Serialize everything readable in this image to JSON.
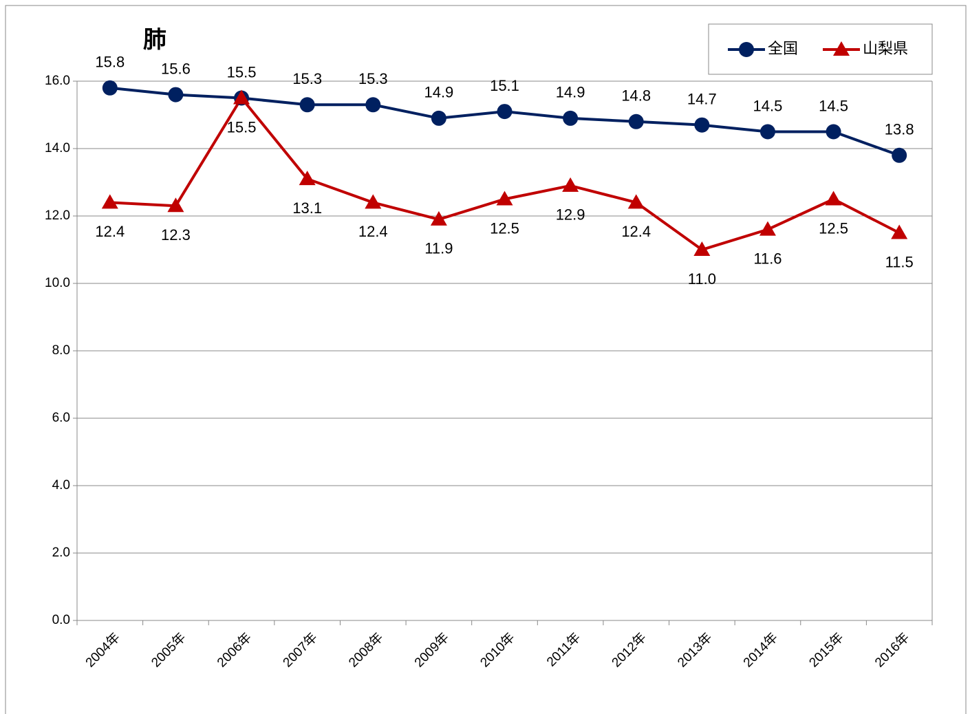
{
  "chart_data": {
    "type": "line",
    "title": "肺",
    "categories": [
      "2004年",
      "2005年",
      "2006年",
      "2007年",
      "2008年",
      "2009年",
      "2010年",
      "2011年",
      "2012年",
      "2013年",
      "2014年",
      "2015年",
      "2016年"
    ],
    "series": [
      {
        "name": "全国",
        "color": "#002060",
        "marker": "circle",
        "values": [
          15.8,
          15.6,
          15.5,
          15.3,
          15.3,
          14.9,
          15.1,
          14.9,
          14.8,
          14.7,
          14.5,
          14.5,
          13.8
        ],
        "value_labels": [
          "15.8",
          "15.6",
          "15.5",
          "15.3",
          "15.3",
          "14.9",
          "15.1",
          "14.9",
          "14.8",
          "14.7",
          "14.5",
          "14.5",
          "13.8"
        ]
      },
      {
        "name": "山梨県",
        "color": "#c00000",
        "marker": "triangle",
        "values": [
          12.4,
          12.3,
          15.5,
          13.1,
          12.4,
          11.9,
          12.5,
          12.9,
          12.4,
          11.0,
          11.6,
          12.5,
          11.5
        ],
        "value_labels": [
          "12.4",
          "12.3",
          "15.5",
          "13.1",
          "12.4",
          "11.9",
          "12.5",
          "12.9",
          "12.4",
          "11.0",
          "11.6",
          "12.5",
          "11.5"
        ]
      }
    ],
    "ylim": [
      0,
      16
    ],
    "yticks": [
      {
        "value": 0,
        "label": "0.0"
      },
      {
        "value": 2,
        "label": "2.0"
      },
      {
        "value": 4,
        "label": "4.0"
      },
      {
        "value": 6,
        "label": "6.0"
      },
      {
        "value": 8,
        "label": "8.0"
      },
      {
        "value": 10,
        "label": "10.0"
      },
      {
        "value": 12,
        "label": "12.0"
      },
      {
        "value": 14,
        "label": "14.0"
      },
      {
        "value": 16,
        "label": "16.0"
      }
    ],
    "grid": true,
    "legend": "top-right"
  }
}
